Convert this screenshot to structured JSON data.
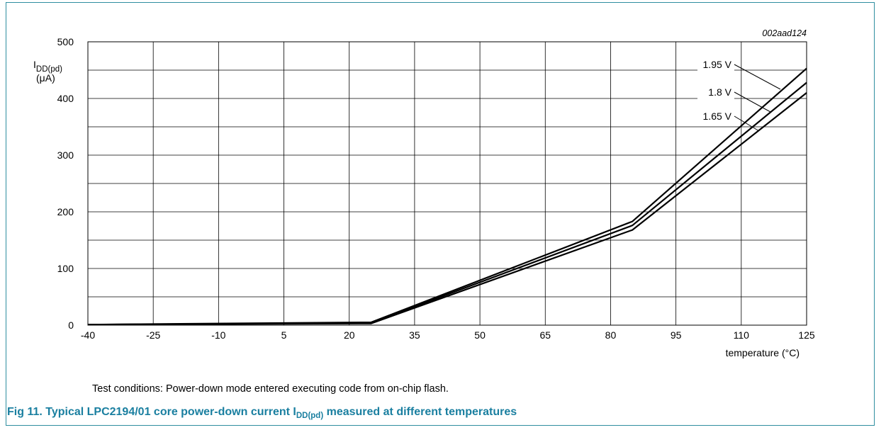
{
  "figure": {
    "code": "002aad124",
    "caption": "Test conditions: Power-down mode entered executing code from on-chip flash.",
    "title_prefix": "Fig 11.  Typical LPC2194/01 core power-down current I",
    "title_sub": "DD(pd)",
    "title_suffix": " measured at different temperatures"
  },
  "colors": {
    "frame": "#2f8ea0",
    "title": "#1a7fa0",
    "lines": "#000000",
    "grid": "#000000"
  },
  "chart_data": {
    "type": "line",
    "ylabel_main": "I",
    "ylabel_sub": "DD(pd)",
    "ylabel_unit": "(μA)",
    "xlabel": "temperature (°C)",
    "xlim": [
      -40,
      125
    ],
    "ylim": [
      0,
      500
    ],
    "x_ticks": [
      "-40",
      "-25",
      "-10",
      "5",
      "20",
      "35",
      "50",
      "65",
      "80",
      "95",
      "110",
      "125"
    ],
    "y_ticks": [
      "0",
      "100",
      "200",
      "300",
      "400",
      "500"
    ],
    "grid": true,
    "series": [
      {
        "name": "1.95 V",
        "points": [
          [
            -40,
            1
          ],
          [
            25,
            5
          ],
          [
            85,
            183
          ],
          [
            125,
            453
          ]
        ]
      },
      {
        "name": "1.8 V",
        "points": [
          [
            -40,
            1
          ],
          [
            25,
            4
          ],
          [
            85,
            176
          ],
          [
            125,
            428
          ]
        ]
      },
      {
        "name": "1.65 V",
        "points": [
          [
            -40,
            1
          ],
          [
            25,
            3
          ],
          [
            85,
            168
          ],
          [
            125,
            410
          ]
        ]
      }
    ]
  }
}
